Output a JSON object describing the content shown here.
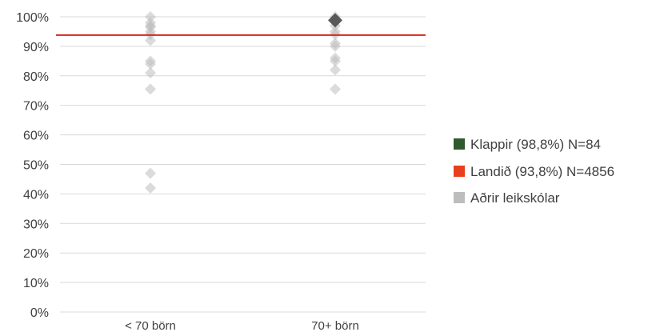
{
  "chart_data": {
    "type": "scatter",
    "categories": [
      "< 70 börn",
      "70+ börn"
    ],
    "ylim": [
      0,
      100
    ],
    "yticks": [
      0,
      10,
      20,
      30,
      40,
      50,
      60,
      70,
      80,
      90,
      100
    ],
    "ytick_labels": [
      "0%",
      "10%",
      "20%",
      "30%",
      "40%",
      "50%",
      "60%",
      "70%",
      "80%",
      "90%",
      "100%"
    ],
    "grid": true,
    "legend_position": "right",
    "series": [
      {
        "name": "Klappir (98,8%) N=84",
        "color": "#595959",
        "legend_color": "#2e5a2e",
        "marker": "diamond",
        "points": [
          {
            "category": "70+ börn",
            "value": 98.8
          }
        ]
      },
      {
        "name": "Landið (93,8%) N=4856",
        "color": "#d9261c",
        "legend_color": "#e8401c",
        "marker": "line",
        "value": 93.8
      },
      {
        "name": "Aðrir leikskólar",
        "color": "#bdbdbd",
        "marker": "diamond",
        "points": [
          {
            "category": "< 70 börn",
            "value": 100
          },
          {
            "category": "< 70 börn",
            "value": 98
          },
          {
            "category": "< 70 börn",
            "value": 97
          },
          {
            "category": "< 70 börn",
            "value": 96.5
          },
          {
            "category": "< 70 börn",
            "value": 95
          },
          {
            "category": "< 70 börn",
            "value": 94
          },
          {
            "category": "< 70 börn",
            "value": 92
          },
          {
            "category": "< 70 börn",
            "value": 85
          },
          {
            "category": "< 70 börn",
            "value": 84
          },
          {
            "category": "< 70 börn",
            "value": 81
          },
          {
            "category": "< 70 börn",
            "value": 75.5
          },
          {
            "category": "< 70 börn",
            "value": 47
          },
          {
            "category": "< 70 börn",
            "value": 42
          },
          {
            "category": "70+ börn",
            "value": 100
          },
          {
            "category": "70+ börn",
            "value": 97
          },
          {
            "category": "70+ börn",
            "value": 95
          },
          {
            "category": "70+ börn",
            "value": 94
          },
          {
            "category": "70+ börn",
            "value": 91
          },
          {
            "category": "70+ börn",
            "value": 90
          },
          {
            "category": "70+ börn",
            "value": 86
          },
          {
            "category": "70+ börn",
            "value": 85
          },
          {
            "category": "70+ börn",
            "value": 82
          },
          {
            "category": "70+ börn",
            "value": 75.5
          }
        ]
      }
    ]
  }
}
